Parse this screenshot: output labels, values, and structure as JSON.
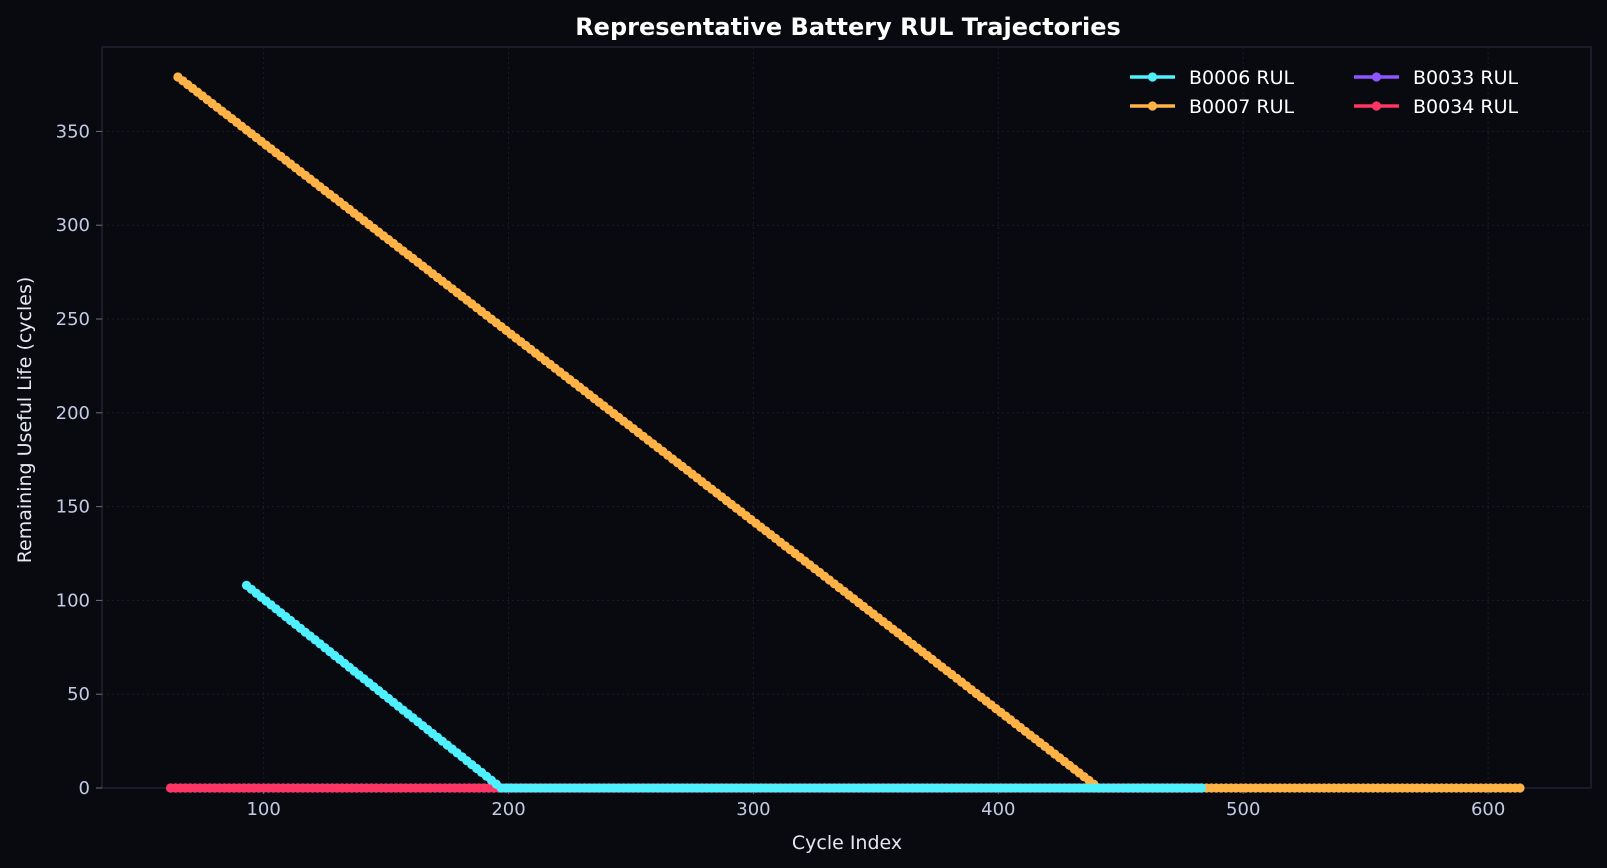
{
  "chart_data": {
    "type": "line",
    "title": "Representative Battery RUL Trajectories",
    "xlabel": "Cycle Index",
    "ylabel": "Remaining Useful Life (cycles)",
    "xlim": [
      34,
      642
    ],
    "ylim": [
      0,
      395
    ],
    "xticks": [
      100,
      200,
      300,
      400,
      500,
      600
    ],
    "yticks": [
      0,
      50,
      100,
      150,
      200,
      250,
      300,
      350
    ],
    "grid": true,
    "legend": {
      "position": "top-right",
      "columns": 2
    },
    "series": [
      {
        "name": "B0006 RUL",
        "color": "#4ff0ff",
        "x_start": 93,
        "x_end": 197,
        "step": 2,
        "rul_at_start": 108,
        "floor_x_end": 483,
        "note_shape": "linear-to-zero"
      },
      {
        "name": "B0007 RUL",
        "color": "#ffb347",
        "x_start": 65,
        "x_end": 441,
        "step": 2,
        "rul_at_start": 379,
        "floor_x_end": 613,
        "note_shape": "linear-to-zero"
      },
      {
        "name": "B0033 RUL",
        "color": "#8f55ff",
        "x_start": 62,
        "x_end": 483,
        "step": 2,
        "rul_at_start": 0,
        "floor_x_end": 483,
        "note_shape": "zero"
      },
      {
        "name": "B0034 RUL",
        "color": "#ff3563",
        "x_start": 62,
        "x_end": 483,
        "step": 2,
        "rul_at_start": 0,
        "floor_x_end": 483,
        "note_shape": "zero"
      }
    ]
  }
}
